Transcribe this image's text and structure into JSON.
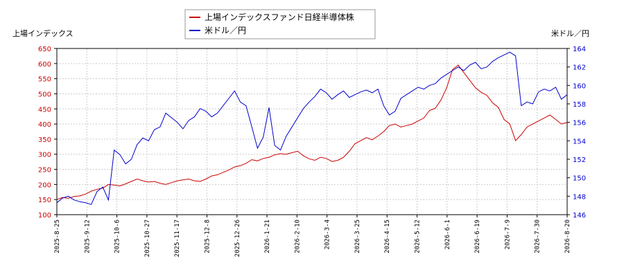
{
  "chart_data": {
    "type": "line",
    "legend_position": "top-center",
    "grid": true,
    "left_axis_label": "上場インデックス",
    "right_axis_label": "米ドル／円",
    "left_ylim": [
      100,
      650
    ],
    "left_ticks": [
      100,
      150,
      200,
      250,
      300,
      350,
      400,
      450,
      500,
      550,
      600,
      650
    ],
    "right_ylim": [
      146,
      164
    ],
    "right_ticks": [
      146,
      148,
      150,
      152,
      154,
      156,
      158,
      160,
      162,
      164
    ],
    "x_ticks": [
      "2025-8-25",
      "2025-9-12",
      "2025-10-6",
      "2025-10-27",
      "2025-11-17",
      "2025-12-8",
      "2025-12-26",
      "2026-1-21",
      "2026-2-10",
      "2026-3-4",
      "2026-3-25",
      "2026-4-15",
      "2026-5-12",
      "2026-6-1",
      "2026-6-19",
      "2026-7-9",
      "2026-7-30",
      "2026-8-20"
    ],
    "series": [
      {
        "name": "上場インデックスファンド日経半導体株",
        "axis": "left",
        "color": "#cc0000",
        "points": [
          [
            0,
            150
          ],
          [
            1,
            157
          ],
          [
            2,
            154
          ],
          [
            3,
            160
          ],
          [
            4,
            162
          ],
          [
            5,
            168
          ],
          [
            6,
            178
          ],
          [
            7,
            184
          ],
          [
            8,
            188
          ],
          [
            9,
            200
          ],
          [
            10,
            198
          ],
          [
            11,
            195
          ],
          [
            12,
            202
          ],
          [
            13,
            210
          ],
          [
            14,
            218
          ],
          [
            15,
            212
          ],
          [
            16,
            208
          ],
          [
            17,
            210
          ],
          [
            18,
            204
          ],
          [
            19,
            200
          ],
          [
            20,
            206
          ],
          [
            21,
            212
          ],
          [
            22,
            215
          ],
          [
            23,
            218
          ],
          [
            24,
            212
          ],
          [
            25,
            210
          ],
          [
            26,
            218
          ],
          [
            27,
            228
          ],
          [
            28,
            232
          ],
          [
            29,
            240
          ],
          [
            30,
            248
          ],
          [
            31,
            258
          ],
          [
            32,
            262
          ],
          [
            33,
            270
          ],
          [
            34,
            282
          ],
          [
            35,
            278
          ],
          [
            36,
            286
          ],
          [
            37,
            290
          ],
          [
            38,
            298
          ],
          [
            39,
            302
          ],
          [
            40,
            300
          ],
          [
            41,
            305
          ],
          [
            42,
            310
          ],
          [
            43,
            295
          ],
          [
            44,
            285
          ],
          [
            45,
            280
          ],
          [
            46,
            290
          ],
          [
            47,
            286
          ],
          [
            48,
            276
          ],
          [
            49,
            280
          ],
          [
            50,
            290
          ],
          [
            51,
            310
          ],
          [
            52,
            335
          ],
          [
            53,
            345
          ],
          [
            54,
            355
          ],
          [
            55,
            348
          ],
          [
            56,
            360
          ],
          [
            57,
            375
          ],
          [
            58,
            395
          ],
          [
            59,
            400
          ],
          [
            60,
            390
          ],
          [
            61,
            395
          ],
          [
            62,
            400
          ],
          [
            63,
            410
          ],
          [
            64,
            420
          ],
          [
            65,
            445
          ],
          [
            66,
            452
          ],
          [
            67,
            480
          ],
          [
            68,
            520
          ],
          [
            69,
            580
          ],
          [
            70,
            595
          ],
          [
            71,
            570
          ],
          [
            72,
            545
          ],
          [
            73,
            520
          ],
          [
            74,
            505
          ],
          [
            75,
            495
          ],
          [
            76,
            470
          ],
          [
            77,
            455
          ],
          [
            78,
            415
          ],
          [
            79,
            400
          ],
          [
            80,
            345
          ],
          [
            81,
            365
          ],
          [
            82,
            390
          ],
          [
            83,
            400
          ],
          [
            84,
            410
          ],
          [
            85,
            420
          ],
          [
            86,
            430
          ],
          [
            87,
            415
          ],
          [
            88,
            400
          ],
          [
            89,
            405
          ]
        ]
      },
      {
        "name": "米ドル／円",
        "axis": "right",
        "color": "#0000cc",
        "points": [
          [
            0,
            147.3
          ],
          [
            1,
            147.8
          ],
          [
            2,
            148.0
          ],
          [
            3,
            147.6
          ],
          [
            4,
            147.4
          ],
          [
            5,
            147.3
          ],
          [
            6,
            147.1
          ],
          [
            7,
            148.5
          ],
          [
            8,
            149.0
          ],
          [
            9,
            147.6
          ],
          [
            10,
            153.0
          ],
          [
            11,
            152.5
          ],
          [
            12,
            151.5
          ],
          [
            13,
            152.0
          ],
          [
            14,
            153.6
          ],
          [
            15,
            154.3
          ],
          [
            16,
            154.0
          ],
          [
            17,
            155.2
          ],
          [
            18,
            155.5
          ],
          [
            19,
            157.0
          ],
          [
            20,
            156.5
          ],
          [
            21,
            156.0
          ],
          [
            22,
            155.3
          ],
          [
            23,
            156.2
          ],
          [
            24,
            156.6
          ],
          [
            25,
            157.5
          ],
          [
            26,
            157.2
          ],
          [
            27,
            156.6
          ],
          [
            28,
            157.0
          ],
          [
            29,
            157.8
          ],
          [
            30,
            158.6
          ],
          [
            31,
            159.4
          ],
          [
            32,
            158.2
          ],
          [
            33,
            157.8
          ],
          [
            34,
            155.5
          ],
          [
            35,
            153.2
          ],
          [
            36,
            154.4
          ],
          [
            37,
            157.6
          ],
          [
            38,
            153.5
          ],
          [
            39,
            153.0
          ],
          [
            40,
            154.5
          ],
          [
            41,
            155.5
          ],
          [
            42,
            156.5
          ],
          [
            43,
            157.5
          ],
          [
            44,
            158.2
          ],
          [
            45,
            158.8
          ],
          [
            46,
            159.6
          ],
          [
            47,
            159.2
          ],
          [
            48,
            158.5
          ],
          [
            49,
            159.0
          ],
          [
            50,
            159.4
          ],
          [
            51,
            158.7
          ],
          [
            52,
            159.0
          ],
          [
            53,
            159.3
          ],
          [
            54,
            159.5
          ],
          [
            55,
            159.2
          ],
          [
            56,
            159.6
          ],
          [
            57,
            157.8
          ],
          [
            58,
            156.8
          ],
          [
            59,
            157.2
          ],
          [
            60,
            158.6
          ],
          [
            61,
            159.0
          ],
          [
            62,
            159.4
          ],
          [
            63,
            159.8
          ],
          [
            64,
            159.6
          ],
          [
            65,
            160.0
          ],
          [
            66,
            160.2
          ],
          [
            67,
            160.8
          ],
          [
            68,
            161.2
          ],
          [
            69,
            161.6
          ],
          [
            70,
            162.0
          ],
          [
            71,
            161.6
          ],
          [
            72,
            162.2
          ],
          [
            73,
            162.5
          ],
          [
            74,
            161.8
          ],
          [
            75,
            162.0
          ],
          [
            76,
            162.6
          ],
          [
            77,
            163.0
          ],
          [
            78,
            163.3
          ],
          [
            79,
            163.6
          ],
          [
            80,
            163.2
          ],
          [
            81,
            157.8
          ],
          [
            82,
            158.2
          ],
          [
            83,
            158.0
          ],
          [
            84,
            159.3
          ],
          [
            85,
            159.6
          ],
          [
            86,
            159.4
          ],
          [
            87,
            159.8
          ],
          [
            88,
            158.5
          ],
          [
            89,
            159.0
          ]
        ]
      }
    ]
  }
}
